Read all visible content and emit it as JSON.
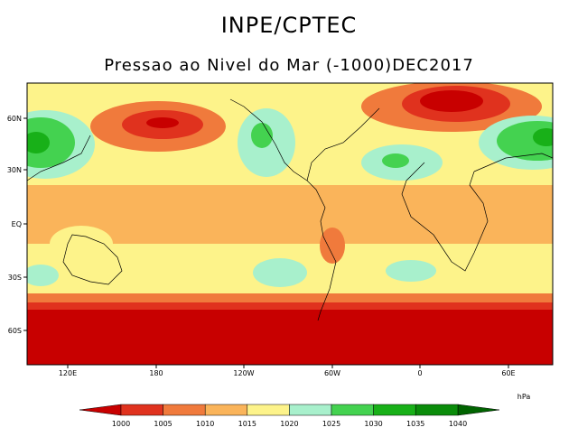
{
  "header": {
    "org": "INPE/CPTEC",
    "subtitle": "Pressao ao Nivel do Mar (-1000)DEC2017"
  },
  "map": {
    "lat_ticks": [
      "60N",
      "30N",
      "EQ",
      "30S",
      "60S"
    ],
    "lon_ticks": [
      "120E",
      "180",
      "120W",
      "60W",
      "0",
      "60E"
    ]
  },
  "colorbar": {
    "unit": "hPa",
    "labels": [
      "1000",
      "1005",
      "1010",
      "1015",
      "1020",
      "1025",
      "1030",
      "1035",
      "1040"
    ],
    "colors": [
      "#c80000",
      "#e0321e",
      "#f07a3c",
      "#fab45a",
      "#fdf38a",
      "#a8f0cc",
      "#44d250",
      "#18b018",
      "#0a8c0a",
      "#006400"
    ]
  }
}
